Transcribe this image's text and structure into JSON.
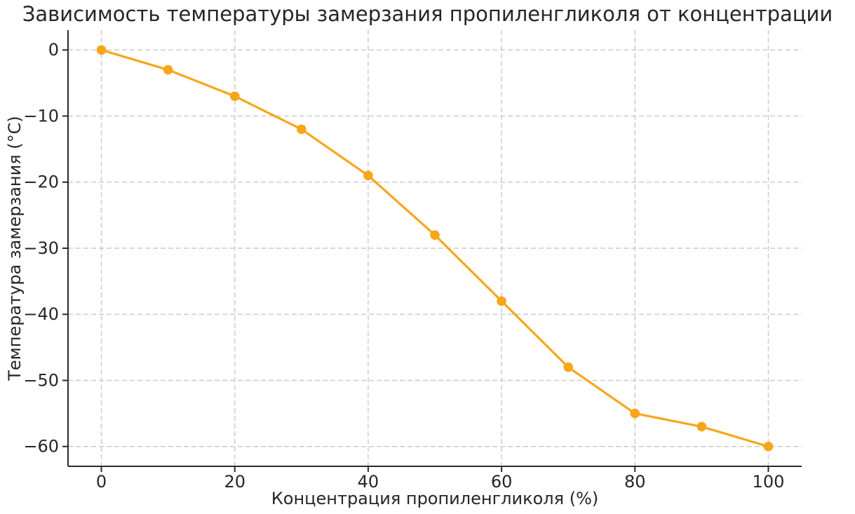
{
  "chart_data": {
    "type": "line",
    "title": "Зависимость температуры замерзания пропиленгликоля от концентрации",
    "xlabel": "Концентрация пропиленгликоля (%)",
    "ylabel": "Температура замерзания (°C)",
    "x": [
      0,
      10,
      20,
      30,
      40,
      50,
      60,
      70,
      80,
      90,
      100
    ],
    "y": [
      0,
      -3,
      -7,
      -12,
      -19,
      -28,
      -38,
      -48,
      -55,
      -57,
      -60
    ],
    "xticks": [
      0,
      20,
      40,
      60,
      80,
      100
    ],
    "yticks": [
      0,
      -10,
      -20,
      -30,
      -40,
      -50,
      -60
    ],
    "xlim": [
      -5,
      105
    ],
    "ylim": [
      -63,
      3
    ],
    "grid": true,
    "grid_style": "dashed",
    "legend": "none",
    "colors": {
      "line": "#F9A51B",
      "marker": "#F9A51B",
      "grid": "#cccccc",
      "axis": "#2b2b2b",
      "text": "#262626",
      "background": "#ffffff"
    }
  }
}
